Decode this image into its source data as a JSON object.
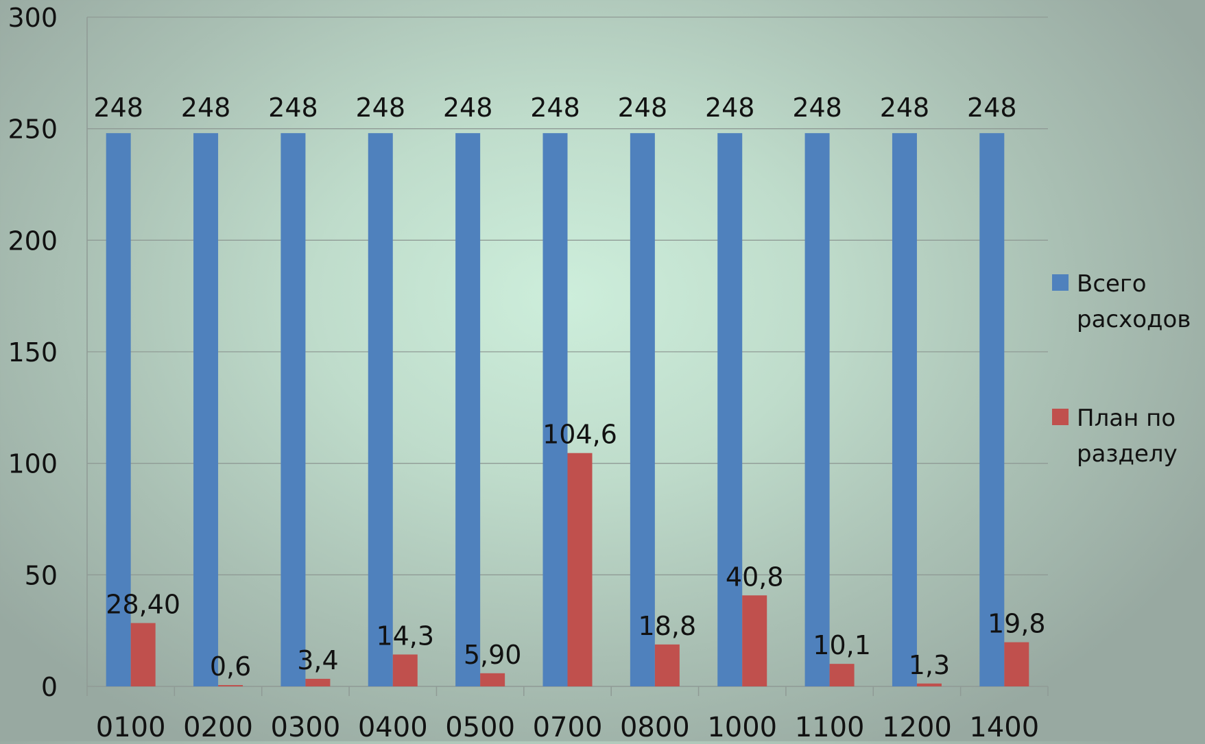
{
  "chart_data": {
    "type": "bar",
    "categories": [
      "0100",
      "0200",
      "0300",
      "0400",
      "0500",
      "0700",
      "0800",
      "1000",
      "1100",
      "1200",
      "1400"
    ],
    "series": [
      {
        "name": "Всего расходов",
        "color": "#4f81bd",
        "values": [
          248,
          248,
          248,
          248,
          248,
          248,
          248,
          248,
          248,
          248,
          248
        ],
        "labels": [
          "248",
          "248",
          "248",
          "248",
          "248",
          "248",
          "248",
          "248",
          "248",
          "248",
          "248"
        ]
      },
      {
        "name": "План по разделу",
        "color": "#c0504d",
        "values": [
          28.4,
          0.6,
          3.4,
          14.3,
          5.9,
          104.6,
          18.8,
          40.8,
          10.1,
          1.3,
          19.8
        ],
        "labels": [
          "28,40",
          "0,6",
          "3,4",
          "14,3",
          "5,90",
          "104,6",
          "18,8",
          "40,8",
          "10,1",
          "1,3",
          "19,8"
        ]
      }
    ],
    "title": "",
    "xlabel": "",
    "ylabel": "",
    "ylim": [
      0,
      300
    ],
    "yticks": [
      "0",
      "50",
      "100",
      "150",
      "200",
      "250",
      "300"
    ],
    "grid": true,
    "legend": {
      "position": "right",
      "entries": [
        {
          "lines": [
            "Всего",
            "расходов"
          ],
          "color": "#4f81bd"
        },
        {
          "lines": [
            "План по",
            "разделу"
          ],
          "color": "#c0504d"
        }
      ]
    }
  }
}
